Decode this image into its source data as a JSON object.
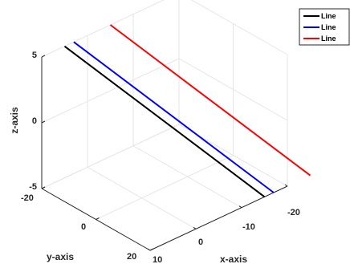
{
  "chart_data": {
    "type": "line",
    "xlabel": "x-axis",
    "ylabel": "y-axis",
    "zlabel": "z-axis",
    "x_ticks": [
      "10",
      "0",
      "-10",
      "-20"
    ],
    "y_ticks": [
      "-20",
      "0",
      "20"
    ],
    "z_ticks": [
      "5",
      "0",
      "-5"
    ],
    "xlim": [
      10,
      -20
    ],
    "ylim": [
      -20,
      20
    ],
    "zlim": [
      -5,
      5
    ],
    "grid": true,
    "legend_position": "top-right",
    "series": [
      {
        "name": "Line",
        "color": "#000000",
        "x": [
          5,
          -15
        ],
        "y": [
          -20,
          20
        ],
        "z": [
          5,
          -5
        ]
      },
      {
        "name": "Line",
        "color": "#0000ff",
        "x": [
          3,
          -17
        ],
        "y": [
          -20,
          20
        ],
        "z": [
          5,
          -5
        ]
      },
      {
        "name": "Line",
        "color": "#ff0000",
        "x": [
          -5,
          -25
        ],
        "y": [
          -20,
          20
        ],
        "z": [
          5,
          -5
        ]
      }
    ]
  }
}
